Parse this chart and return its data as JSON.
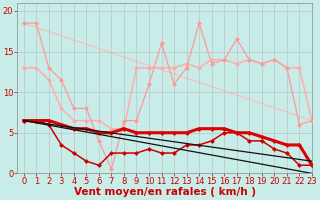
{
  "background_color": "#c8ece8",
  "grid_color": "#b0b0b0",
  "xlabel": "Vent moyen/en rafales ( km/h )",
  "xlabel_color": "#cc0000",
  "xlabel_fontsize": 7.5,
  "tick_color": "#cc0000",
  "tick_fontsize": 6,
  "ylim": [
    0,
    21
  ],
  "xlim": [
    -0.5,
    23
  ],
  "yticks": [
    0,
    5,
    10,
    15,
    20
  ],
  "xticks": [
    0,
    1,
    2,
    3,
    4,
    5,
    6,
    7,
    8,
    9,
    10,
    11,
    12,
    13,
    14,
    15,
    16,
    17,
    18,
    19,
    20,
    21,
    22,
    23
  ],
  "series": {
    "pink_jagged": {
      "x": [
        0,
        1,
        2,
        3,
        4,
        5,
        6,
        7,
        8,
        9,
        10,
        11,
        12,
        13,
        14,
        15,
        16,
        17,
        18,
        19,
        20,
        21,
        22,
        23
      ],
      "y": [
        18.5,
        18.5,
        13,
        11.5,
        8,
        8,
        4,
        0.5,
        6.5,
        6.5,
        11,
        16,
        11,
        13,
        18.5,
        13.5,
        14,
        16.5,
        14,
        13.5,
        14,
        13,
        6,
        6.5
      ],
      "color": "#ff9999",
      "linewidth": 0.9,
      "markersize": 2.5,
      "zorder": 3
    },
    "pink_trend": {
      "x": [
        0,
        23
      ],
      "y": [
        18.5,
        6.5
      ],
      "color": "#ffbbbb",
      "linewidth": 0.8,
      "zorder": 1
    },
    "medium_pink": {
      "x": [
        0,
        1,
        2,
        3,
        4,
        5,
        6,
        7,
        8,
        9,
        10,
        11,
        12,
        13,
        14,
        15,
        16,
        17,
        18,
        19,
        20,
        21,
        22,
        23
      ],
      "y": [
        13,
        13,
        11.5,
        8,
        6.5,
        6.5,
        6.5,
        5.5,
        5.5,
        13,
        13,
        13,
        13,
        13.5,
        13,
        14,
        14,
        13.5,
        14,
        13.5,
        14,
        13,
        13,
        6.5
      ],
      "color": "#ffaaaa",
      "linewidth": 1.0,
      "markersize": 2.5,
      "zorder": 2
    },
    "dark_red_thick": {
      "x": [
        0,
        1,
        2,
        3,
        4,
        5,
        6,
        7,
        8,
        9,
        10,
        11,
        12,
        13,
        14,
        15,
        16,
        17,
        18,
        19,
        20,
        21,
        22,
        23
      ],
      "y": [
        6.5,
        6.5,
        6.5,
        6.0,
        5.5,
        5.5,
        5.0,
        5.0,
        5.5,
        5.0,
        5.0,
        5.0,
        5.0,
        5.0,
        5.5,
        5.5,
        5.5,
        5.0,
        5.0,
        4.5,
        4.0,
        3.5,
        3.5,
        1.0
      ],
      "color": "#dd0000",
      "linewidth": 2.2,
      "markersize": 2.5,
      "zorder": 5
    },
    "dark_red_thin": {
      "x": [
        0,
        1,
        2,
        3,
        4,
        5,
        6,
        7,
        8,
        9,
        10,
        11,
        12,
        13,
        14,
        15,
        16,
        17,
        18,
        19,
        20,
        21,
        22,
        23
      ],
      "y": [
        6.5,
        6.5,
        6.0,
        3.5,
        2.5,
        1.5,
        1.0,
        2.5,
        2.5,
        2.5,
        3.0,
        2.5,
        2.5,
        3.5,
        3.5,
        4.0,
        5.0,
        5.0,
        4.0,
        4.0,
        3.0,
        2.5,
        1.0,
        1.0
      ],
      "color": "#cc0000",
      "linewidth": 1.1,
      "markersize": 2.5,
      "zorder": 4
    },
    "black_trend1": {
      "x": [
        0,
        23
      ],
      "y": [
        6.5,
        1.5
      ],
      "color": "#111111",
      "linewidth": 0.9,
      "zorder": 6
    },
    "black_trend2": {
      "x": [
        0,
        23
      ],
      "y": [
        6.5,
        0.0
      ],
      "color": "#111111",
      "linewidth": 0.9,
      "zorder": 6
    }
  }
}
